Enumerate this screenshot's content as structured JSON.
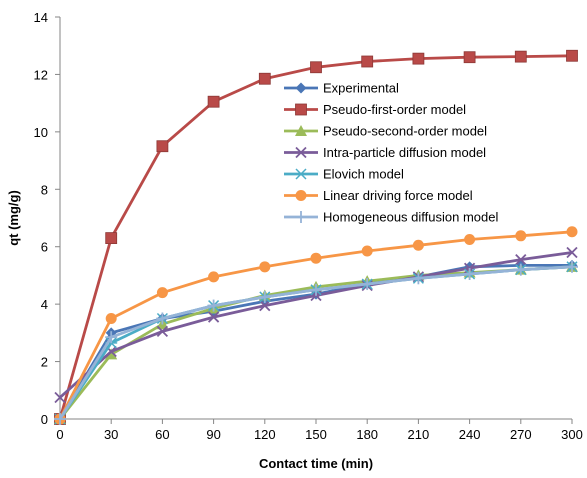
{
  "chart_data": {
    "type": "line",
    "title": "",
    "xlabel": "Contact time (min)",
    "ylabel": "qt (mg/g)",
    "xlim": [
      0,
      300
    ],
    "ylim": [
      0,
      14
    ],
    "x_ticks": [
      0,
      30,
      60,
      90,
      120,
      150,
      180,
      210,
      240,
      270,
      300
    ],
    "y_ticks": [
      0,
      2,
      4,
      6,
      8,
      10,
      12,
      14
    ],
    "x": [
      0,
      30,
      60,
      90,
      120,
      150,
      180,
      210,
      240,
      270,
      300
    ],
    "grid": false,
    "legend_position": "center-right",
    "series": [
      {
        "name": "Experimental",
        "color": "#4a76b6",
        "marker": "diamond",
        "values": [
          0,
          3.0,
          3.5,
          3.75,
          4.1,
          4.35,
          4.7,
          4.95,
          5.3,
          5.35,
          5.35
        ]
      },
      {
        "name": "Pseudo-first-order model",
        "color": "#b94a48",
        "marker": "square",
        "values": [
          0,
          6.3,
          9.5,
          11.05,
          11.85,
          12.25,
          12.45,
          12.55,
          12.6,
          12.62,
          12.65
        ]
      },
      {
        "name": "Pseudo-second-order model",
        "color": "#9bbb59",
        "marker": "triangle",
        "values": [
          0,
          2.25,
          3.3,
          3.85,
          4.3,
          4.6,
          4.8,
          5.0,
          5.1,
          5.2,
          5.3
        ]
      },
      {
        "name": "Intra-particle diffusion model",
        "color": "#7a5c99",
        "marker": "x",
        "values": [
          0.75,
          2.35,
          3.05,
          3.55,
          3.95,
          4.3,
          4.65,
          4.95,
          5.25,
          5.55,
          5.8
        ]
      },
      {
        "name": "Elovich model",
        "color": "#4bacc6",
        "marker": "star",
        "values": [
          0,
          2.65,
          3.5,
          3.95,
          4.25,
          4.5,
          4.7,
          4.9,
          5.05,
          5.2,
          5.3
        ]
      },
      {
        "name": "Linear driving force model",
        "color": "#f79646",
        "marker": "circle",
        "values": [
          0,
          3.5,
          4.4,
          4.95,
          5.3,
          5.6,
          5.85,
          6.05,
          6.25,
          6.38,
          6.52
        ]
      },
      {
        "name": "Homogeneous diffusion model",
        "color": "#95b3d7",
        "marker": "plus",
        "values": [
          0,
          2.85,
          3.5,
          3.95,
          4.25,
          4.5,
          4.7,
          4.9,
          5.05,
          5.2,
          5.3
        ]
      }
    ]
  }
}
